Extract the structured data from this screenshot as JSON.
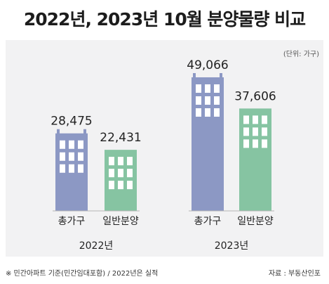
{
  "title": "2022년, 2023년 10월 분양물량 비교",
  "unit_label": "(단위: 가구)",
  "footnote": "※ 민간아파트 기준(민간임대포함) / 2022년은 실적",
  "source": "자료 : 부동산인포",
  "colors": {
    "total": "#8c98c4",
    "general": "#86c4a2",
    "background": "#f2f2f3"
  },
  "chart_data": {
    "type": "bar",
    "title": "2022년, 2023년 10월 분양물량 비교",
    "groups": [
      "2022년",
      "2023년"
    ],
    "categories": [
      "총가구",
      "일반분양"
    ],
    "series": [
      {
        "name": "총가구",
        "values": [
          28475,
          49066
        ]
      },
      {
        "name": "일반분양",
        "values": [
          22431,
          37606
        ]
      }
    ],
    "value_labels": [
      [
        "28,475",
        "22,431"
      ],
      [
        "49,066",
        "37,606"
      ]
    ],
    "ylim": [
      0,
      55000
    ],
    "grid": false,
    "legend": "none"
  }
}
